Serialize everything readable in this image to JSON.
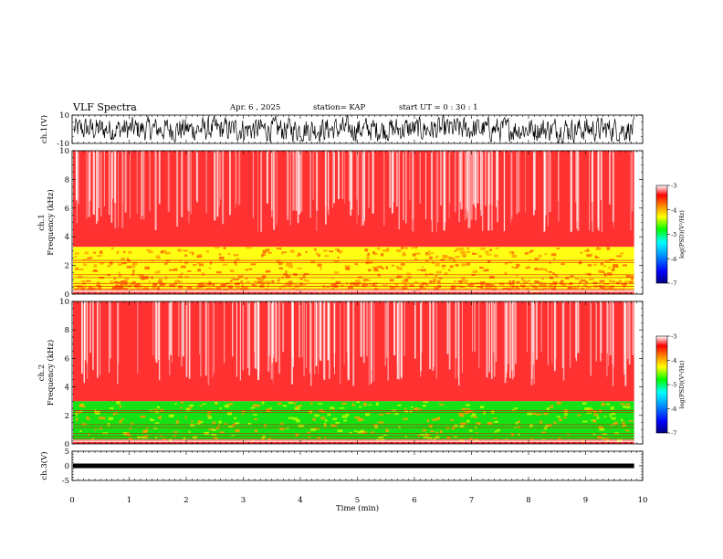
{
  "header": {
    "title": "VLF Spectra",
    "date": "Apr. 6 , 2025",
    "station": "station= KAP",
    "start": "start UT = 0 : 30 : 1"
  },
  "colors": {
    "background": "#ffffff",
    "spectrogram_high": "#ff2020",
    "spectrogram_mid": "#ffff00",
    "spectrogram_low": "#00e000",
    "colormap": [
      "#000080",
      "#0000ff",
      "#00a0ff",
      "#00ffff",
      "#00ff00",
      "#ffff00",
      "#ff8000",
      "#ff0000",
      "#ffffff"
    ]
  },
  "chart_data": [
    {
      "type": "line",
      "name": "ch1-waveform",
      "ylabel": "ch.1(V)",
      "ylim": [
        -10,
        10
      ],
      "yticks": [
        "10",
        "-10"
      ],
      "xlim": [
        0,
        10
      ],
      "y_amplitude_note": "dense noise filling roughly -9 to 9",
      "color": "#000000"
    },
    {
      "type": "heatmap",
      "name": "ch1-spectrogram",
      "ylabel": "ch.1\nFrequency (kHz)",
      "ylabel_line1": "ch.1",
      "ylabel_line2": "Frequency (kHz)",
      "ylim": [
        0,
        10
      ],
      "yticks": [
        "0",
        "2",
        "4",
        "6",
        "8",
        "10"
      ],
      "xlim": [
        0,
        10
      ],
      "bands": [
        {
          "from": 0,
          "to": 0.3,
          "level": "high"
        },
        {
          "from": 0.3,
          "to": 1.0,
          "level": "mid"
        },
        {
          "from": 1.0,
          "to": 3.3,
          "level": "mid"
        },
        {
          "from": 3.3,
          "to": 10,
          "level": "high"
        }
      ],
      "colorbar": {
        "label": "log(PSD)(V²/Hz)",
        "min": -7,
        "max": -3,
        "ticks": [
          "-3",
          "-4",
          "-5",
          "-6",
          "-7"
        ]
      }
    },
    {
      "type": "heatmap",
      "name": "ch2-spectrogram",
      "ylabel": "ch.2\nFrequency (kHz)",
      "ylabel_line1": "ch.2",
      "ylabel_line2": "Frequency (kHz)",
      "ylim": [
        0,
        10
      ],
      "yticks": [
        "0",
        "2",
        "4",
        "6",
        "8",
        "10"
      ],
      "xlim": [
        0,
        10
      ],
      "bands": [
        {
          "from": 0,
          "to": 0.3,
          "level": "high"
        },
        {
          "from": 0.3,
          "to": 3.0,
          "level": "low"
        },
        {
          "from": 3.0,
          "to": 10,
          "level": "high"
        }
      ],
      "colorbar": {
        "label": "log(PSD)(V²/Hz)",
        "min": -7,
        "max": -3,
        "ticks": [
          "-3",
          "-4",
          "-5",
          "-6",
          "-7"
        ]
      }
    },
    {
      "type": "line",
      "name": "ch3-waveform",
      "ylabel": "ch.3(V)",
      "ylim": [
        -5,
        5
      ],
      "yticks": [
        "5",
        "0",
        "-5"
      ],
      "xlim": [
        0,
        10
      ],
      "y_level": 0,
      "color": "#000000"
    }
  ],
  "xaxis": {
    "label": "Time (min)",
    "ticks": [
      "0",
      "1",
      "2",
      "3",
      "4",
      "5",
      "6",
      "7",
      "8",
      "9",
      "10"
    ],
    "xlim": [
      0,
      10
    ],
    "data_end": 9.85
  }
}
